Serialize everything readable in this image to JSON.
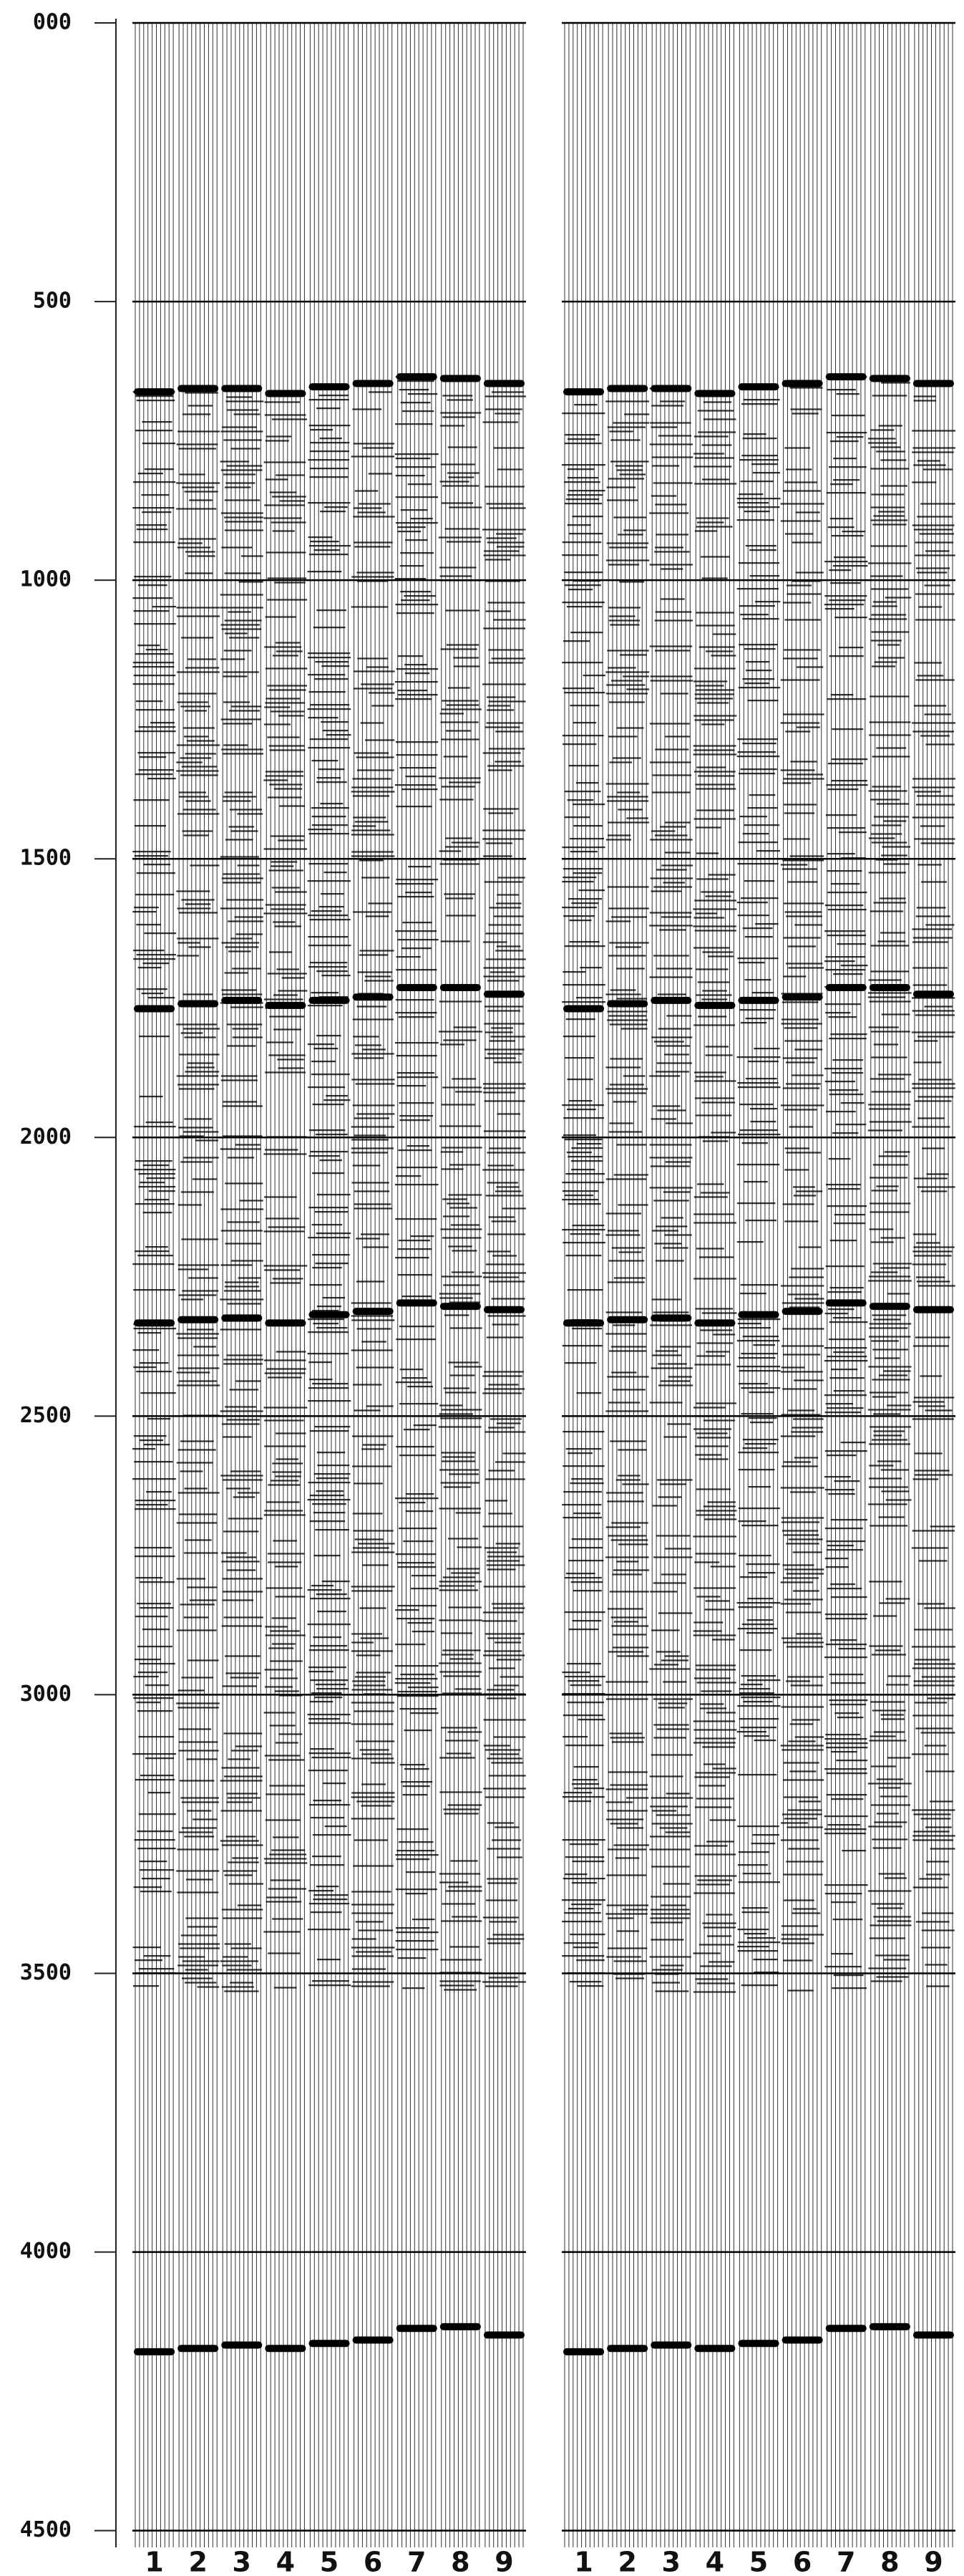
{
  "chart_data": {
    "type": "seismic",
    "panels": 2,
    "categories": [
      "1",
      "2",
      "3",
      "4",
      "5",
      "6",
      "7",
      "8",
      "9"
    ],
    "ylim": [
      0,
      4530
    ],
    "yticks": [
      {
        "value": 0,
        "label": "000"
      },
      500,
      1000,
      1500,
      2000,
      2500,
      3000,
      3500,
      4000,
      4500
    ],
    "grid": true,
    "color": "#000000",
    "series": [
      {
        "values": [
          662,
          656,
          656,
          665,
          653,
          647,
          635,
          638,
          647
        ]
      },
      {
        "values": [
          1769,
          1760,
          1754,
          1763,
          1754,
          1748,
          1731,
          1731,
          1743
        ]
      },
      {
        "values": [
          2333,
          2327,
          2324,
          2333,
          2318,
          2312,
          2297,
          2303,
          2309
        ]
      },
      {
        "values": [
          4179,
          4173,
          4167,
          4173,
          4164,
          4158,
          4137,
          4134,
          4149
        ]
      }
    ]
  }
}
